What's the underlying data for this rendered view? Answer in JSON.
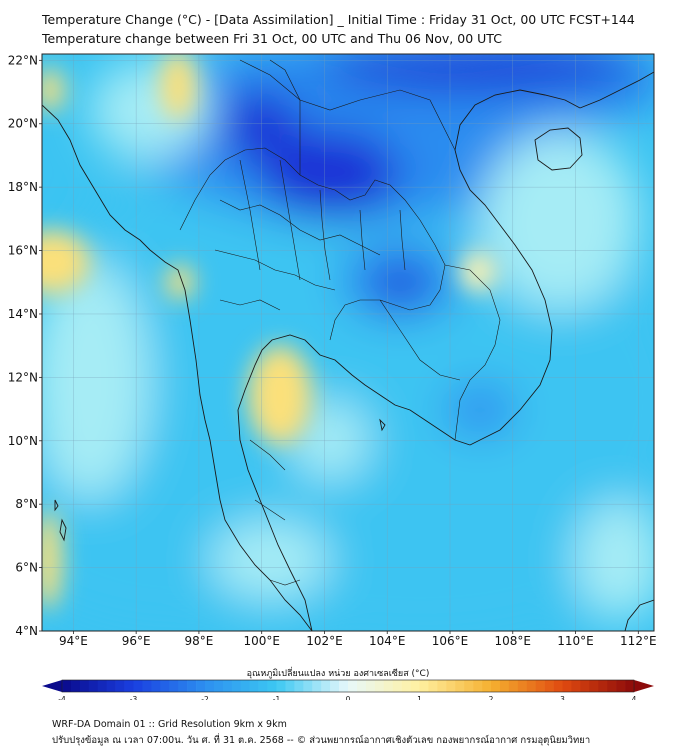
{
  "header": {
    "title": "Temperature Change (°C) - [Data Assimilation] _ Initial Time : Friday 31 Oct, 00 UTC FCST+144",
    "subtitle": "Temperature change between Fri 31 Oct, 00 UTC and Thu 06 Nov, 00 UTC"
  },
  "map": {
    "lat_labels": [
      "22°N",
      "20°N",
      "18°N",
      "16°N",
      "14°N",
      "12°N",
      "10°N",
      "8°N",
      "6°N",
      "4°N"
    ],
    "lon_labels": [
      "94°E",
      "96°E",
      "98°E",
      "100°E",
      "102°E",
      "104°E",
      "106°E",
      "108°E",
      "110°E",
      "112°E"
    ],
    "lat_values": [
      22,
      20,
      18,
      16,
      14,
      12,
      10,
      8,
      6,
      4
    ],
    "lon_values": [
      94,
      96,
      98,
      100,
      102,
      104,
      106,
      108,
      110,
      112
    ],
    "extent": {
      "lon_min": 93,
      "lon_max": 112.5,
      "lat_min": 4,
      "lat_max": 22.2
    },
    "field_colors": {
      "deep_blue": "#1a2fd6",
      "mid_blue": "#2a8cf0",
      "light_blue": "#3cc4f2",
      "pale_cyan": "#a6ecf5",
      "pale_yellow": "#fff3b0",
      "yellow": "#fbe07a"
    }
  },
  "colorbar": {
    "label": "อุณหภูมิเปลี่ยนแปลง หน่วย องศาเซลเซียส (°C)",
    "ticks": [
      "-4",
      "-3",
      "-2",
      "-1",
      "0",
      "1",
      "2",
      "3",
      "4"
    ],
    "min": -4,
    "max": 4,
    "color_stops": [
      "#0a0a8c",
      "#1a3fe0",
      "#2d8ff0",
      "#3cc8f2",
      "#e8f8fa",
      "#fff0a0",
      "#f5b030",
      "#e04a10",
      "#8c0a0a"
    ]
  },
  "footer": {
    "line1": "WRF-DA Domain 01 :: Grid Resolution 9km x 9km",
    "line2": "ปรับปรุงข้อมูล ณ เวลา 07:00น. วัน ศ. ที่ 31 ต.ค. 2568 -- © ส่วนพยากรณ์อากาศเชิงตัวเลข กองพยากรณ์อากาศ กรมอุตุนิยมวิทยา"
  }
}
